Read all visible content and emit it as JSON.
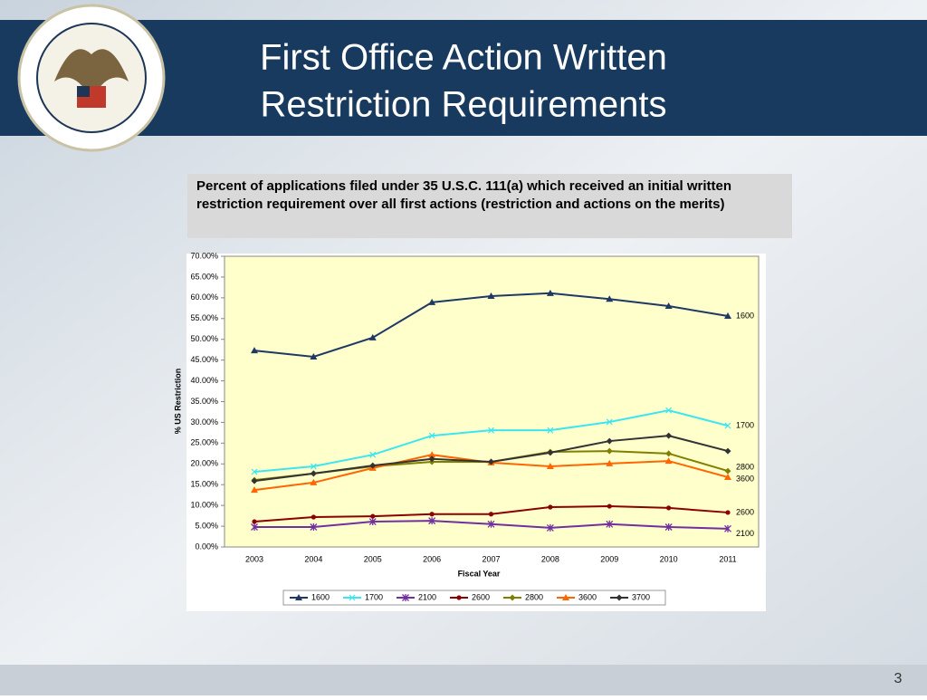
{
  "header": {
    "title_lines": [
      "First Office Action Written",
      "Restriction Requirements"
    ]
  },
  "description": "Percent of applications filed under 35 U.S.C. 111(a) which received an initial written restriction requirement over all first actions (restriction and actions on the merits)",
  "chart_data": {
    "type": "line",
    "x_label": "Fiscal Year",
    "y_label": "% US Restriction",
    "categories": [
      "2003",
      "2004",
      "2005",
      "2006",
      "2007",
      "2008",
      "2009",
      "2010",
      "2011"
    ],
    "ylim": [
      0,
      70
    ],
    "yticks": [
      {
        "value": 0,
        "label": "0.00%"
      },
      {
        "value": 5,
        "label": "5.00%"
      },
      {
        "value": 10,
        "label": "10.00%"
      },
      {
        "value": 15,
        "label": "15.00%"
      },
      {
        "value": 20,
        "label": "20.00%"
      },
      {
        "value": 25,
        "label": "25.00%"
      },
      {
        "value": 30,
        "label": "30.00%"
      },
      {
        "value": 35,
        "label": "35.00%"
      },
      {
        "value": 40,
        "label": "40.00%"
      },
      {
        "value": 45,
        "label": "45.00%"
      },
      {
        "value": 50,
        "label": "50.00%"
      },
      {
        "value": 55,
        "label": "55.00%"
      },
      {
        "value": 60,
        "label": "60.00%"
      },
      {
        "value": 65,
        "label": "65.00%"
      },
      {
        "value": 70,
        "label": "70.00%"
      }
    ],
    "series": [
      {
        "name": "1600",
        "color": "#1f3864",
        "marker": "triangle",
        "end_label": true,
        "values": [
          47.3,
          45.8,
          50.4,
          58.9,
          60.4,
          61.1,
          59.7,
          58.0,
          55.6
        ]
      },
      {
        "name": "1700",
        "color": "#3ce6f0",
        "marker": "x",
        "end_label": true,
        "values": [
          18.1,
          19.4,
          22.2,
          26.8,
          28.1,
          28.1,
          30.1,
          32.9,
          29.2
        ]
      },
      {
        "name": "2100",
        "color": "#7030a0",
        "marker": "star",
        "end_label": true,
        "values": [
          4.8,
          4.8,
          6.1,
          6.3,
          5.5,
          4.6,
          5.5,
          4.8,
          4.4
        ]
      },
      {
        "name": "2600",
        "color": "#8b0000",
        "marker": "circle",
        "end_label": true,
        "values": [
          6.1,
          7.2,
          7.4,
          7.9,
          7.9,
          9.6,
          9.8,
          9.4,
          8.3
        ]
      },
      {
        "name": "2800",
        "color": "#808000",
        "marker": "diamond",
        "end_label": true,
        "values": [
          16.1,
          17.7,
          19.4,
          20.5,
          20.5,
          22.9,
          23.1,
          22.5,
          18.3
        ]
      },
      {
        "name": "3600",
        "color": "#ff6600",
        "marker": "triangle",
        "end_label": true,
        "values": [
          13.7,
          15.5,
          19.0,
          22.2,
          20.3,
          19.4,
          20.1,
          20.7,
          16.8
        ]
      },
      {
        "name": "3700",
        "color": "#333333",
        "marker": "diamond",
        "end_label": false,
        "values": [
          15.9,
          17.7,
          19.6,
          21.2,
          20.5,
          22.7,
          25.5,
          26.8,
          23.1
        ]
      }
    ]
  },
  "page_number": "3"
}
